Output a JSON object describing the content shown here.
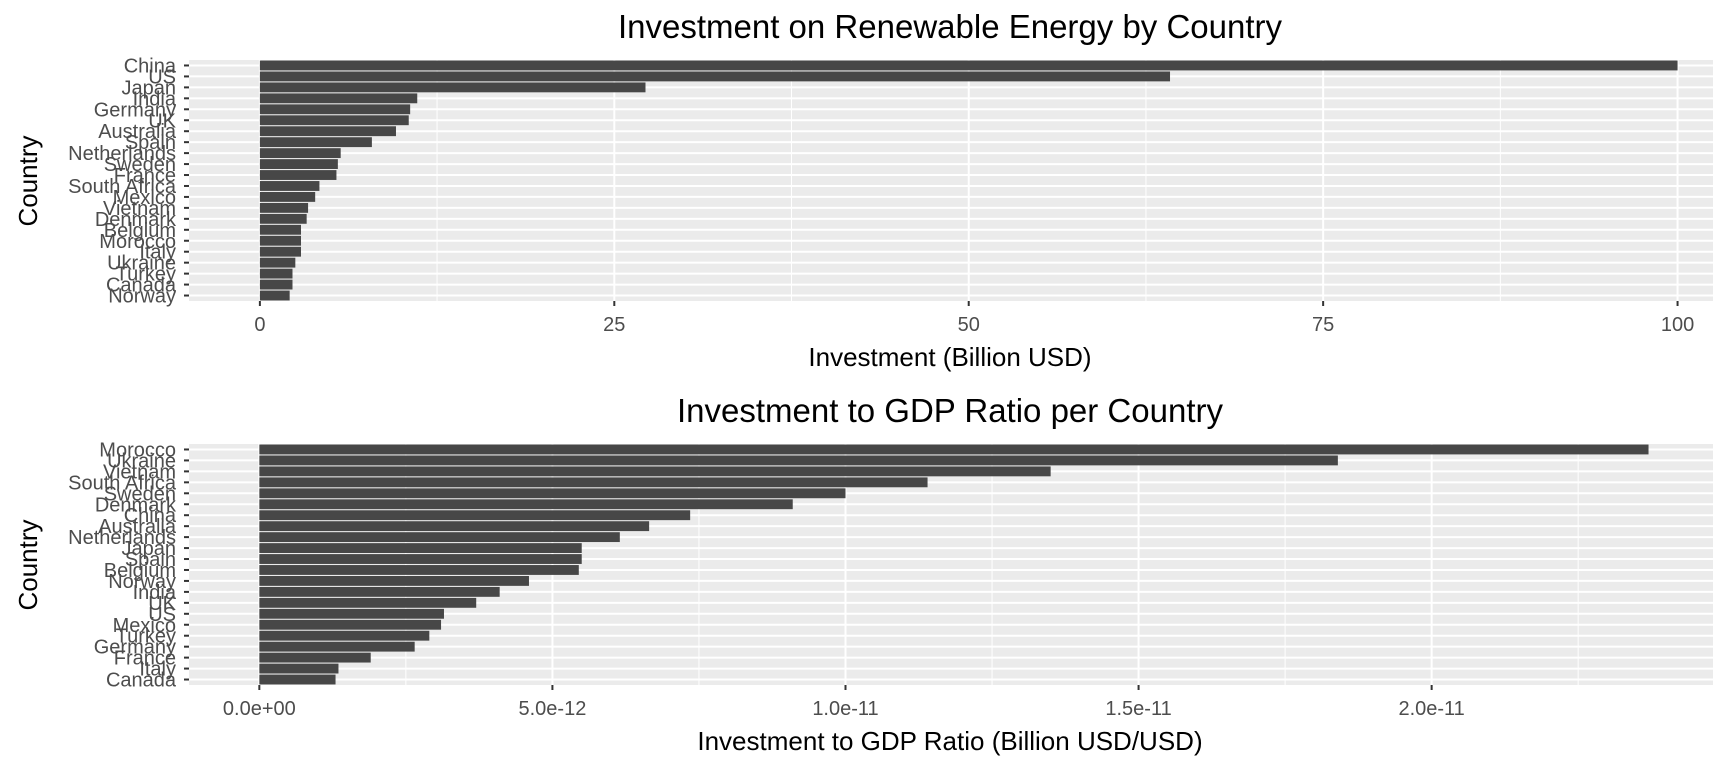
{
  "chart_data": [
    {
      "type": "bar",
      "orientation": "horizontal",
      "title": "Investment on Renewable Energy by Country",
      "xlabel": "Investment (Billion USD)",
      "ylabel": "Country",
      "xlim": [
        -5,
        102.5
      ],
      "xticks": [
        0,
        25,
        50,
        75,
        100
      ],
      "xtick_labels": [
        "0",
        "25",
        "50",
        "75",
        "100"
      ],
      "grid": true,
      "bar_color": "#474747",
      "panel_color": "#ebebeb",
      "categories": [
        "China",
        "US",
        "Japan",
        "India",
        "Germany",
        "UK",
        "Australia",
        "Spain",
        "Netherlands",
        "Sweden",
        "France",
        "South Africa",
        "Mexico",
        "Vietnam",
        "Denmark",
        "Belgium",
        "Morocco",
        "Italy",
        "Ukraine",
        "Turkey",
        "Canada",
        "Norway"
      ],
      "values": [
        100.0,
        64.2,
        27.2,
        11.1,
        10.6,
        10.5,
        9.6,
        7.9,
        5.7,
        5.5,
        5.4,
        4.2,
        3.9,
        3.4,
        3.3,
        2.9,
        2.9,
        2.9,
        2.5,
        2.3,
        2.3,
        2.1
      ]
    },
    {
      "type": "bar",
      "orientation": "horizontal",
      "title": "Investment to GDP Ratio per Country",
      "xlabel": "Investment to GDP Ratio (Billion USD/USD)",
      "ylabel": "Country",
      "xlim": [
        -1.2e-12,
        2.48e-11
      ],
      "xticks": [
        0,
        5e-12,
        1e-11,
        1.5e-11,
        2e-11
      ],
      "xtick_labels": [
        "0.0e+00",
        "5.0e-12",
        "1.0e-11",
        "1.5e-11",
        "2.0e-11"
      ],
      "grid": true,
      "bar_color": "#474747",
      "panel_color": "#ebebeb",
      "categories": [
        "Morocco",
        "Ukraine",
        "Vietnam",
        "South Africa",
        "Sweden",
        "Denmark",
        "China",
        "Australia",
        "Netherlands",
        "Japan",
        "Spain",
        "Belgium",
        "Norway",
        "India",
        "UK",
        "US",
        "Mexico",
        "Turkey",
        "Germany",
        "France",
        "Italy",
        "Canada"
      ],
      "values": [
        2.37e-11,
        1.84e-11,
        1.35e-11,
        1.14e-11,
        1e-11,
        9.1e-12,
        7.35e-12,
        6.65e-12,
        6.15e-12,
        5.5e-12,
        5.5e-12,
        5.45e-12,
        4.6e-12,
        4.1e-12,
        3.7e-12,
        3.15e-12,
        3.1e-12,
        2.9e-12,
        2.65e-12,
        1.9e-12,
        1.35e-12,
        1.3e-12
      ]
    }
  ]
}
